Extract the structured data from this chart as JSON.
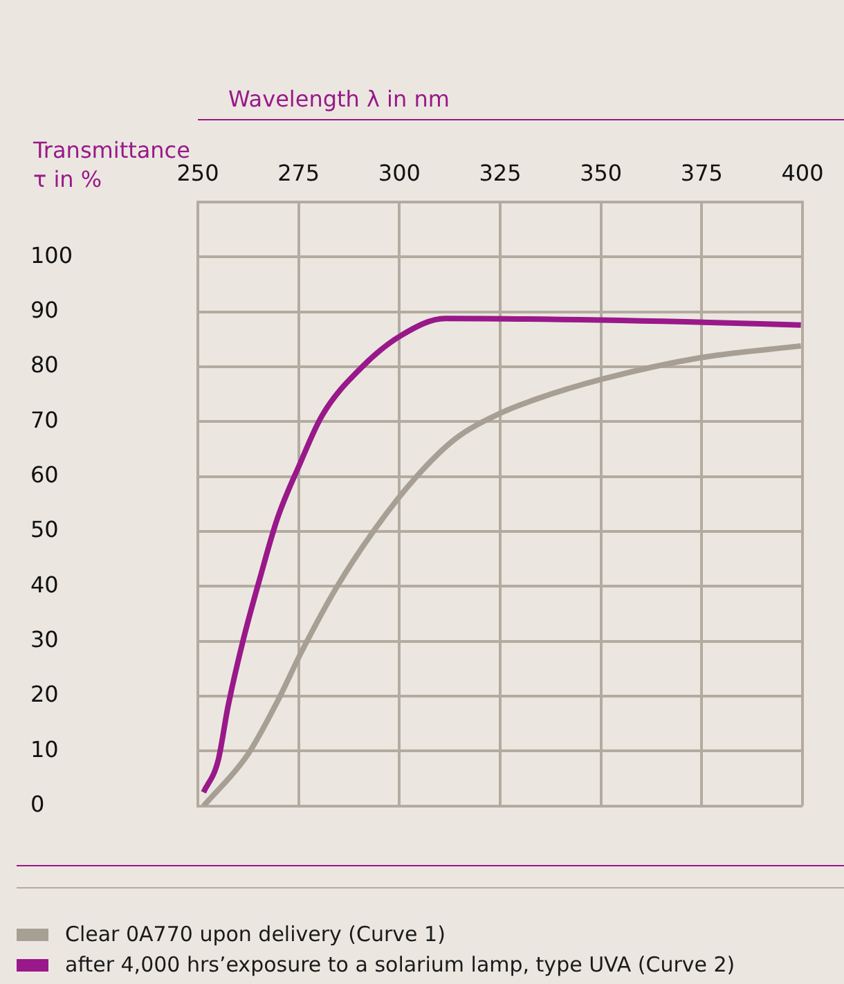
{
  "chart_data": {
    "type": "line",
    "xlabel": "Wavelength λ in nm",
    "ylabel": "Transmittance τ in %",
    "xlim": [
      250,
      400
    ],
    "xticks": [
      250,
      275,
      300,
      325,
      350,
      375,
      400
    ],
    "ylim": [
      0,
      110
    ],
    "yticks": [
      0,
      10,
      20,
      30,
      40,
      50,
      60,
      70,
      80,
      90,
      100
    ],
    "grid": true,
    "legend": "bottom left",
    "marker": "none",
    "line_style": "solid",
    "series": [
      {
        "name": "Clear 0A770 upon delivery (Curve 1)",
        "color": "#a79f94",
        "x": [
          251.4,
          262.4,
          269.7,
          275.8,
          284.4,
          294.2,
          304,
          313.9,
          324.9,
          333.5,
          350.6,
          375.1,
          399.6
        ],
        "values": [
          0,
          9.4,
          19,
          28.2,
          39.8,
          50.7,
          59.8,
          66.9,
          71.5,
          74,
          77.8,
          81.7,
          83.8
        ]
      },
      {
        "name": "after 4,000 hrs’exposure to a solarium lamp, type UVA (Curve 2)",
        "color": "#99188a",
        "x": [
          251.4,
          255,
          257.5,
          261.1,
          265.4,
          269.7,
          275.3,
          280.8,
          290.5,
          300.4,
          311.4,
          371,
          399.6
        ],
        "values": [
          2.5,
          8.2,
          18.2,
          29.8,
          41.5,
          52.3,
          62.3,
          71.1,
          79.8,
          85.7,
          88.8,
          88.2,
          87.6
        ]
      }
    ]
  }
}
